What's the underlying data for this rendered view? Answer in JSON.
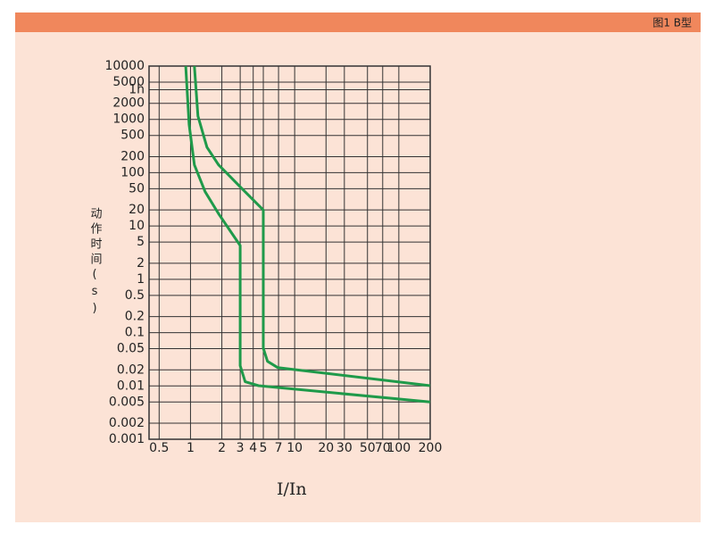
{
  "header": {
    "title": "图1  B型"
  },
  "chart_data": {
    "type": "line",
    "x_label": "I/In",
    "y_label": "动作时间(s)",
    "xscale": "log",
    "yscale": "log",
    "grid": true,
    "xlim": [
      0.4,
      200
    ],
    "ylim": [
      0.001,
      10000
    ],
    "xticks": [
      0.5,
      1,
      2,
      3,
      4,
      5,
      7,
      10,
      20,
      30,
      50,
      70,
      100,
      200
    ],
    "yticks": [
      10000,
      5000,
      {
        "value": 3600,
        "label": "1h"
      },
      2000,
      1000,
      500,
      200,
      100,
      50,
      20,
      10,
      5,
      2,
      1,
      0.5,
      0.2,
      0.1,
      0.05,
      0.02,
      0.01,
      0.005,
      0.002,
      0.001
    ],
    "series": [
      {
        "color": "#1f9a4a",
        "x": [
          0.9,
          0.97,
          1.09,
          1.38,
          1.86,
          3,
          3,
          3.35,
          4.5,
          200
        ],
        "values": [
          10000,
          800,
          140,
          44,
          17,
          4.3,
          0.024,
          0.012,
          0.0101,
          0.005
        ]
      },
      {
        "color": "#1f9a4a",
        "x": [
          1.09,
          1.18,
          1.44,
          1.86,
          3.04,
          5,
          5,
          5.48,
          6.9,
          200
        ],
        "values": [
          10000,
          1150,
          300,
          140,
          53,
          20,
          0.051,
          0.029,
          0.022,
          0.0101
        ]
      }
    ]
  }
}
